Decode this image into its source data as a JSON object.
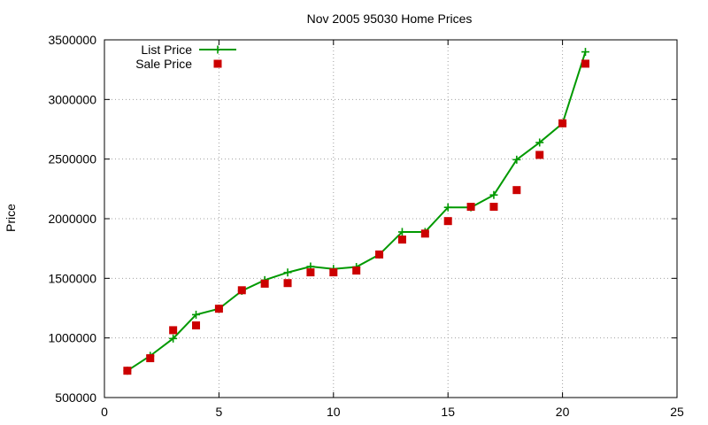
{
  "chart_data": {
    "type": "line",
    "title": "Nov 2005 95030 Home Prices",
    "xlabel": "",
    "ylabel": "Price",
    "xlim": [
      0,
      25
    ],
    "ylim": [
      500000,
      3500000
    ],
    "xticks": [
      "0",
      "5",
      "10",
      "15",
      "20",
      "25"
    ],
    "yticks": [
      "500000",
      "1000000",
      "1500000",
      "2000000",
      "2500000",
      "3000000",
      "3500000"
    ],
    "grid": true,
    "legend": "top-left",
    "series": [
      {
        "name": "List Price",
        "style": "line-plus",
        "color": "#009900",
        "x": [
          1,
          2,
          3,
          4,
          5,
          6,
          7,
          8,
          9,
          10,
          11,
          12,
          13,
          14,
          15,
          16,
          17,
          18,
          19,
          20,
          21
        ],
        "values": [
          725000,
          850000,
          995000,
          1195000,
          1245000,
          1395000,
          1485000,
          1549000,
          1599000,
          1579000,
          1595000,
          1699000,
          1889000,
          1889000,
          2095000,
          2095000,
          2199000,
          2495000,
          2639000,
          2799000,
          3399000
        ]
      },
      {
        "name": "Sale Price",
        "style": "square",
        "color": "#cc0000",
        "x": [
          1,
          2,
          3,
          4,
          5,
          6,
          7,
          8,
          9,
          10,
          11,
          12,
          13,
          14,
          15,
          16,
          17,
          18,
          19,
          20,
          21
        ],
        "values": [
          725000,
          830000,
          1065000,
          1105000,
          1245000,
          1400000,
          1455000,
          1460000,
          1550000,
          1550000,
          1565000,
          1700000,
          1825000,
          1875000,
          1980000,
          2100000,
          2100000,
          2240000,
          2535000,
          2800000,
          3300000
        ]
      }
    ]
  }
}
